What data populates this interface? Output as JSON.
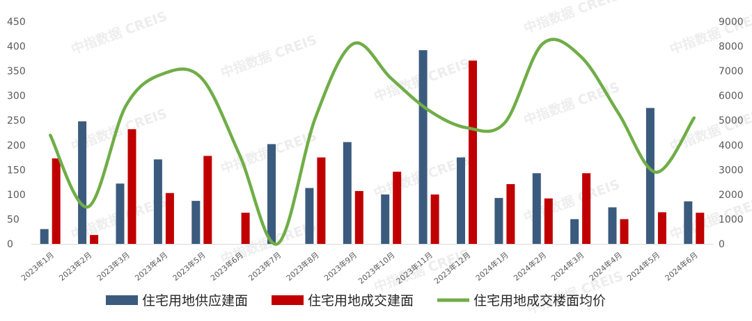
{
  "chart_data": {
    "type": "bar",
    "categories": [
      "2023年1月",
      "2023年2月",
      "2023年3月",
      "2023年4月",
      "2023年5月",
      "2023年6月",
      "2023年7月",
      "2023年8月",
      "2023年9月",
      "2023年10月",
      "2023年11月",
      "2023年12月",
      "2024年1月",
      "2024年2月",
      "2024年3月",
      "2024年4月",
      "2024年5月",
      "2024年6月"
    ],
    "series": [
      {
        "name": "住宅用地供应建面",
        "kind": "bar",
        "axis": "left",
        "color": "#3b5b7e",
        "values": [
          30,
          248,
          122,
          171,
          87,
          0,
          202,
          113,
          206,
          100,
          392,
          175,
          93,
          143,
          50,
          74,
          275,
          86
        ]
      },
      {
        "name": "住宅用地成交建面",
        "kind": "bar",
        "axis": "left",
        "color": "#c00000",
        "values": [
          173,
          18,
          232,
          103,
          178,
          63,
          0,
          175,
          107,
          146,
          100,
          371,
          121,
          92,
          143,
          50,
          64,
          63
        ]
      },
      {
        "name": "住宅用地成交楼面均价",
        "kind": "line",
        "axis": "right",
        "color": "#70ad47",
        "values": [
          4400,
          1500,
          5600,
          6900,
          6700,
          3600,
          0,
          5100,
          8100,
          6700,
          5400,
          4700,
          4900,
          8100,
          7600,
          5300,
          2900,
          5100
        ]
      }
    ],
    "y_left": {
      "min": 0,
      "max": 450,
      "ticks": [
        0,
        50,
        100,
        150,
        200,
        250,
        300,
        350,
        400,
        450
      ]
    },
    "y_right": {
      "min": 0,
      "max": 9000,
      "ticks": [
        0,
        1000,
        2000,
        3000,
        4000,
        5000,
        6000,
        7000,
        8000,
        9000
      ]
    },
    "grid": false,
    "legend_position": "bottom",
    "title": "",
    "xlabel": "",
    "ylabel": ""
  },
  "watermark": "中指数据 CREIS"
}
